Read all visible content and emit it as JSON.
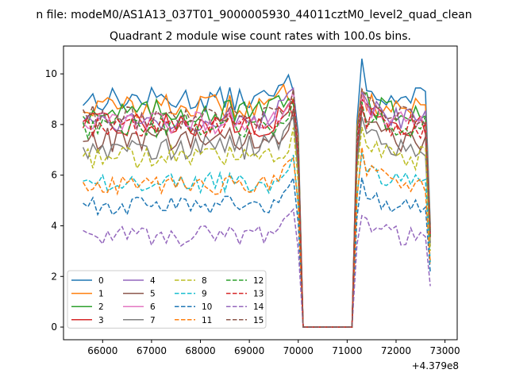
{
  "suptitle": "n file: modeM0/AS1A13_037T01_9000005930_44011cztM0_level2_quad_clean",
  "chart_data": {
    "type": "line",
    "title": "Quadrant 2 module wise count rates with 100.0s bins.",
    "xlabel": "",
    "ylabel": "",
    "x_offset_label": "+4.379e8",
    "xlim": [
      65200,
      73250
    ],
    "ylim": [
      -0.5,
      11.1
    ],
    "x_ticks": [
      66000,
      67000,
      68000,
      69000,
      70000,
      71000,
      72000,
      73000
    ],
    "x_tick_labels": [
      "66000",
      "67000",
      "68000",
      "69000",
      "70000",
      "71000",
      "72000",
      "73000"
    ],
    "y_ticks": [
      0,
      2,
      4,
      6,
      8,
      10
    ],
    "y_tick_labels": [
      "0",
      "2",
      "4",
      "6",
      "8",
      "10"
    ],
    "grid": false,
    "legend_placement": "lower-left",
    "legend_columns": 4,
    "gap": {
      "start": 70100,
      "end": 71100,
      "value": 0
    },
    "series": [
      {
        "name": "0",
        "color": "#1f77b4",
        "dash": "solid",
        "base": 9.0,
        "amp": 0.3,
        "post_peak": 10.6
      },
      {
        "name": "1",
        "color": "#ff7f0e",
        "dash": "solid",
        "base": 8.7,
        "amp": 0.3,
        "post_peak": 9.4
      },
      {
        "name": "2",
        "color": "#2ca02c",
        "dash": "solid",
        "base": 8.5,
        "amp": 0.3,
        "post_peak": 9.2
      },
      {
        "name": "3",
        "color": "#d62728",
        "dash": "solid",
        "base": 8.0,
        "amp": 0.3,
        "post_peak": 9.0
      },
      {
        "name": "4",
        "color": "#9467bd",
        "dash": "solid",
        "base": 8.2,
        "amp": 0.3,
        "post_peak": 9.3
      },
      {
        "name": "5",
        "color": "#8c564b",
        "dash": "solid",
        "base": 7.4,
        "amp": 0.3,
        "post_peak": 8.6
      },
      {
        "name": "6",
        "color": "#e377c2",
        "dash": "solid",
        "base": 8.1,
        "amp": 0.3,
        "post_peak": 9.2
      },
      {
        "name": "7",
        "color": "#7f7f7f",
        "dash": "solid",
        "base": 7.1,
        "amp": 0.3,
        "post_peak": 8.3
      },
      {
        "name": "8",
        "color": "#bcbd22",
        "dash": "dashed",
        "base": 6.7,
        "amp": 0.3,
        "post_peak": 7.9
      },
      {
        "name": "9",
        "color": "#17becf",
        "dash": "dashed",
        "base": 5.7,
        "amp": 0.25,
        "post_peak": 6.9
      },
      {
        "name": "10",
        "color": "#1f77b4",
        "dash": "dashed",
        "base": 4.8,
        "amp": 0.25,
        "post_peak": 5.9
      },
      {
        "name": "11",
        "color": "#ff7f0e",
        "dash": "dashed",
        "base": 5.6,
        "amp": 0.25,
        "post_peak": 7.1
      },
      {
        "name": "12",
        "color": "#2ca02c",
        "dash": "dashed",
        "base": 7.9,
        "amp": 0.3,
        "post_peak": 8.9
      },
      {
        "name": "13",
        "color": "#d62728",
        "dash": "dashed",
        "base": 7.9,
        "amp": 0.3,
        "post_peak": 8.8
      },
      {
        "name": "14",
        "color": "#9467bd",
        "dash": "dashed",
        "base": 3.6,
        "amp": 0.25,
        "post_peak": 4.4
      },
      {
        "name": "15",
        "color": "#8c564b",
        "dash": "dashed",
        "base": 8.3,
        "amp": 0.3,
        "post_peak": 9.4
      }
    ]
  }
}
